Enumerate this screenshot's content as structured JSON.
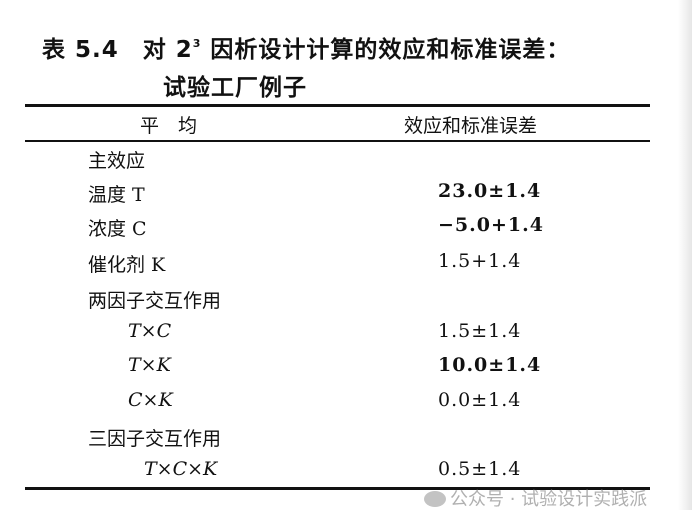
{
  "title": {
    "line1_prefix": "表 5.4　对 2",
    "superscript": "3",
    "line1_suffix": " 因析设计计算的效应和标准误差：",
    "line2": "试验工厂例子"
  },
  "headers": {
    "left": "平　均",
    "right": "效应和标准误差"
  },
  "rows": [
    {
      "label": "主效应",
      "value": "",
      "indent": 0,
      "bold": false
    },
    {
      "label": "温度 T",
      "value": "23.0±1.4",
      "indent": 0,
      "bold": true
    },
    {
      "label": "浓度 C",
      "value": "−5.0+1.4",
      "indent": 0,
      "bold": true
    },
    {
      "label": "催化剂 K",
      "value": "1.5+1.4",
      "indent": 0,
      "bold": false
    },
    {
      "label": "两因子交互作用",
      "value": "",
      "indent": 0,
      "bold": false
    },
    {
      "label": "T×C",
      "value": "1.5±1.4",
      "indent": 2,
      "bold": false
    },
    {
      "label": "T×K",
      "value": "10.0±1.4",
      "indent": 2,
      "bold": true
    },
    {
      "label": "C×K",
      "value": "0.0±1.4",
      "indent": 2,
      "bold": false
    },
    {
      "label": "三因子交互作用",
      "value": "",
      "indent": 0,
      "bold": false
    },
    {
      "label": "T×C×K",
      "value": "0.5±1.4",
      "indent": 1,
      "bold": false
    }
  ],
  "watermark": {
    "text": "公众号 · 试验设计实践派",
    "icon": "wechat-icon"
  }
}
